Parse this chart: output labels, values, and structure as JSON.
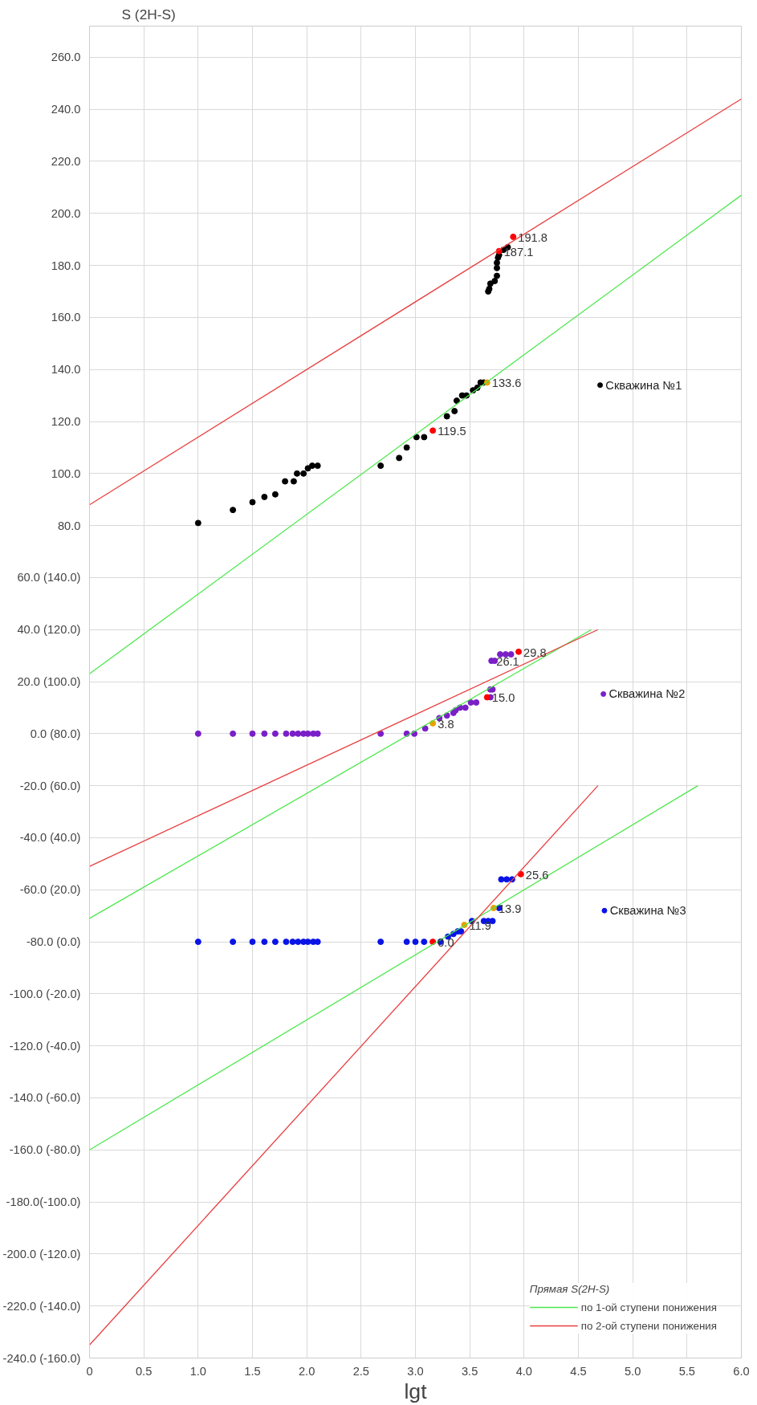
{
  "chart_data": {
    "type": "scatter",
    "xlabel": "lgt",
    "ylabel": "S (2H-S)",
    "legend_title": "Прямая S(2H-S)",
    "xlim": [
      0,
      6
    ],
    "ylim": [
      -240,
      272
    ],
    "xticks": [
      0,
      0.5,
      {
        "value": 1,
        "label": "1.0"
      },
      1.5,
      {
        "value": 2,
        "label": "2.0"
      },
      2.5,
      {
        "value": 3,
        "label": "3.0"
      },
      3.5,
      {
        "value": 4,
        "label": "4.0"
      },
      4.5,
      {
        "value": 5,
        "label": "5.0"
      },
      5.5,
      {
        "value": 6,
        "label": "6.0"
      }
    ],
    "yticks": [
      {
        "value": -240,
        "label": "-240.0 (-160.0)"
      },
      {
        "value": -220,
        "label": "-220.0 (-140.0)"
      },
      {
        "value": -200,
        "label": "-200.0 (-120.0)"
      },
      {
        "value": -180,
        "label": "-180.0(-100.0)"
      },
      {
        "value": -160,
        "label": "-160.0 (-80.0)"
      },
      {
        "value": -140,
        "label": "-140.0 (-60.0)"
      },
      {
        "value": -120,
        "label": "-120.0 (-40.0)"
      },
      {
        "value": -100,
        "label": "-100.0 (-20.0)"
      },
      {
        "value": -80,
        "label": "-80.0 (0.0)"
      },
      {
        "value": -60,
        "label": "-60.0 (20.0)"
      },
      {
        "value": -40,
        "label": "-40.0 (40.0)"
      },
      {
        "value": -20,
        "label": "-20.0 (60.0)"
      },
      {
        "value": 0,
        "label": "0.0 (80.0)"
      },
      {
        "value": 20,
        "label": "20.0 (100.0)"
      },
      {
        "value": 40,
        "label": "40.0 (120.0)"
      },
      {
        "value": 60,
        "label": "60.0 (140.0)"
      },
      {
        "value": 80,
        "label": "80.0"
      },
      {
        "value": 100,
        "label": "100.0"
      },
      {
        "value": 120,
        "label": "120.0"
      },
      {
        "value": 140,
        "label": "140.0"
      },
      {
        "value": 160,
        "label": "160.0"
      },
      {
        "value": 180,
        "label": "180.0"
      },
      {
        "value": 200,
        "label": "200.0"
      },
      {
        "value": 220,
        "label": "220.0"
      },
      {
        "value": 240,
        "label": "240.0"
      },
      {
        "value": 260,
        "label": "260.0"
      }
    ],
    "grid": true,
    "legend": "bottom right",
    "series": [
      {
        "name": "Скважина №1",
        "marker": "circle",
        "color": "#000000",
        "x": [
          1.0,
          1.32,
          1.5,
          1.61,
          1.71,
          1.8,
          1.88,
          1.91,
          1.97,
          2.01,
          2.05,
          2.1,
          2.68,
          2.85,
          2.92,
          3.01,
          3.08,
          3.29,
          3.36,
          3.38,
          3.43,
          3.47,
          3.53,
          3.57,
          3.6,
          3.63,
          3.67,
          3.68,
          3.69,
          3.73,
          3.75,
          3.75,
          3.75,
          3.76,
          3.77,
          3.81,
          3.85
        ],
        "values": [
          81,
          86,
          89,
          91,
          92,
          97,
          97,
          100,
          100,
          102,
          103,
          103,
          103,
          106,
          110,
          114,
          114,
          122,
          124,
          128,
          130,
          130,
          132,
          133,
          135,
          135,
          170,
          171,
          173,
          174,
          176,
          179,
          181,
          183,
          184,
          186,
          187
        ]
      },
      {
        "name": "Скважина №2",
        "marker": "circle",
        "color": "#7a1fc8",
        "x": [
          1.0,
          1.32,
          1.5,
          1.61,
          1.71,
          1.81,
          1.87,
          1.92,
          1.97,
          2.01,
          2.06,
          2.1,
          2.68,
          2.92,
          2.99,
          3.09,
          3.22,
          3.29,
          3.35,
          3.37,
          3.41,
          3.46,
          3.51,
          3.56,
          3.69,
          3.69,
          3.71,
          3.7,
          3.73,
          3.78,
          3.83,
          3.88
        ],
        "values": [
          0,
          0,
          0,
          0,
          0,
          0,
          0,
          0,
          0,
          0,
          0,
          0,
          0,
          0,
          0,
          2,
          6,
          7,
          8,
          9,
          10,
          10,
          12,
          12,
          14,
          17,
          17,
          28,
          28,
          30.5,
          30.5,
          30.5
        ]
      },
      {
        "name": "Скважина №3",
        "marker": "circle",
        "color": "#0a14e6",
        "x": [
          1.0,
          1.32,
          1.5,
          1.61,
          1.71,
          1.81,
          1.87,
          1.92,
          1.97,
          2.01,
          2.06,
          2.1,
          2.68,
          2.92,
          3.0,
          3.08,
          3.23,
          3.3,
          3.35,
          3.39,
          3.42,
          3.52,
          3.63,
          3.67,
          3.71,
          3.77,
          3.79,
          3.84,
          3.89
        ],
        "values": [
          -80,
          -80,
          -80,
          -80,
          -80,
          -80,
          -80,
          -80,
          -80,
          -80,
          -80,
          -80,
          -80,
          -80,
          -80,
          -80,
          -80,
          -78,
          -77,
          -76,
          -76,
          -72,
          -72,
          -72,
          -72,
          -67,
          -56,
          -56,
          -56
        ]
      },
      {
        "marker": "circle",
        "colors": [
          "#ff0000",
          "#ff0000",
          "#e8a000",
          "#ff0000",
          "#e8a000",
          "#ff0000",
          "#ff0000",
          "#ff0000",
          "#e8a000",
          "#e8a000",
          "#ff0000"
        ],
        "x": [
          3.16,
          3.9,
          3.66,
          3.77,
          3.16,
          3.66,
          3.95,
          3.16,
          3.45,
          3.72,
          3.97
        ],
        "values": [
          116.5,
          191,
          135,
          185.5,
          4,
          14,
          31.5,
          -80,
          -73.5,
          -67,
          -54
        ]
      },
      {
        "type": "line",
        "name": "по 1-ой ступени понижения",
        "color": "#4de84d",
        "x": [
          0,
          6
        ],
        "values": [
          23,
          207
        ]
      },
      {
        "type": "line",
        "name": "по 2-ой ступени понижения",
        "color": "#e84040",
        "x": [
          0,
          6
        ],
        "values": [
          88,
          244
        ]
      },
      {
        "type": "line",
        "color": "#4de84d",
        "x": [
          0,
          4.62
        ],
        "values": [
          -71,
          40
        ]
      },
      {
        "type": "line",
        "color": "#e84040",
        "x": [
          0,
          4.68
        ],
        "values": [
          -51,
          40
        ]
      },
      {
        "type": "line",
        "color": "#4de84d",
        "x": [
          0,
          5.6
        ],
        "values": [
          -160,
          -20
        ]
      },
      {
        "type": "line",
        "color": "#e84040",
        "x": [
          0,
          4.68
        ],
        "values": [
          -235,
          -20
        ]
      }
    ],
    "annotations": [
      {
        "text": "187.1",
        "x": 3.77,
        "y": 185.5
      },
      {
        "text": "191.8",
        "x": 3.9,
        "y": 191
      },
      {
        "text": "133.6",
        "x": 3.66,
        "y": 135
      },
      {
        "text": "119.5",
        "x": 3.16,
        "y": 116.5
      },
      {
        "text": "29.8",
        "x": 3.95,
        "y": 31.5
      },
      {
        "text": "26.1",
        "x": 3.7,
        "y": 28
      },
      {
        "text": "15.0",
        "x": 3.66,
        "y": 14
      },
      {
        "text": "3.8",
        "x": 3.16,
        "y": 4
      },
      {
        "text": "25.6",
        "x": 3.97,
        "y": -54
      },
      {
        "text": "13.9",
        "x": 3.72,
        "y": -67
      },
      {
        "text": "11.9",
        "x": 3.45,
        "y": -73.5
      },
      {
        "text": "0.0",
        "x": 3.16,
        "y": -80
      }
    ]
  }
}
